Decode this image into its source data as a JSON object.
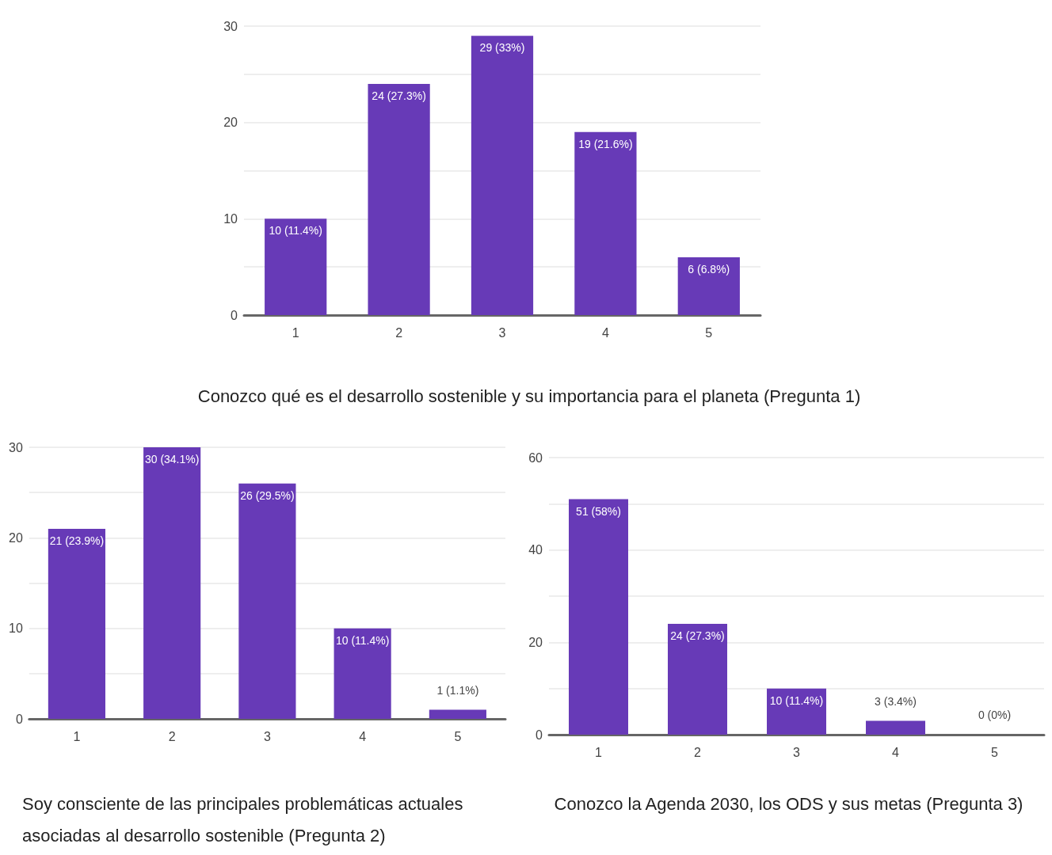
{
  "chart_data": [
    {
      "type": "bar",
      "title": "Conozco qué es el desarrollo sostenible y su importancia para el planeta (Pregunta 1)",
      "categories": [
        "1",
        "2",
        "3",
        "4",
        "5"
      ],
      "values": [
        10,
        24,
        29,
        19,
        6
      ],
      "value_labels": [
        "10 (11.4%)",
        "24 (27.3%)",
        "29 (33%)",
        "19 (21.6%)",
        "6 (6.8%)"
      ],
      "color": "#673ab7",
      "ylim": [
        0,
        30
      ],
      "yticks": [
        0,
        {
          "value": 5,
          "label": null
        },
        10,
        {
          "value": 15,
          "label": null
        },
        20,
        {
          "value": 25,
          "label": null
        },
        30
      ],
      "grid": "y"
    },
    {
      "type": "bar",
      "title": "Soy consciente de las principales problemáticas actuales asociadas al desarrollo sostenible (Pregunta 2)",
      "categories": [
        "1",
        "2",
        "3",
        "4",
        "5"
      ],
      "values": [
        21,
        30,
        26,
        10,
        1
      ],
      "value_labels": [
        "21 (23.9%)",
        "30 (34.1%)",
        "26 (29.5%)",
        "10 (11.4%)",
        "1 (1.1%)"
      ],
      "color": "#673ab7",
      "ylim": [
        0,
        30
      ],
      "yticks": [
        0,
        {
          "value": 5,
          "label": null
        },
        10,
        {
          "value": 15,
          "label": null
        },
        20,
        {
          "value": 25,
          "label": null
        },
        30
      ],
      "grid": "y"
    },
    {
      "type": "bar",
      "title": "Conozco la Agenda 2030, los ODS y sus metas (Pregunta 3)",
      "categories": [
        "1",
        "2",
        "3",
        "4",
        "5"
      ],
      "values": [
        51,
        24,
        10,
        3,
        0
      ],
      "value_labels": [
        "51 (58%)",
        "24 (27.3%)",
        "10 (11.4%)",
        "3 (3.4%)",
        "0 (0%)"
      ],
      "color": "#673ab7",
      "ylim": [
        0,
        60
      ],
      "yticks": [
        0,
        {
          "value": 10,
          "label": null
        },
        20,
        {
          "value": 30,
          "label": null
        },
        40,
        {
          "value": 50,
          "label": null
        },
        60
      ],
      "grid": "y"
    }
  ]
}
